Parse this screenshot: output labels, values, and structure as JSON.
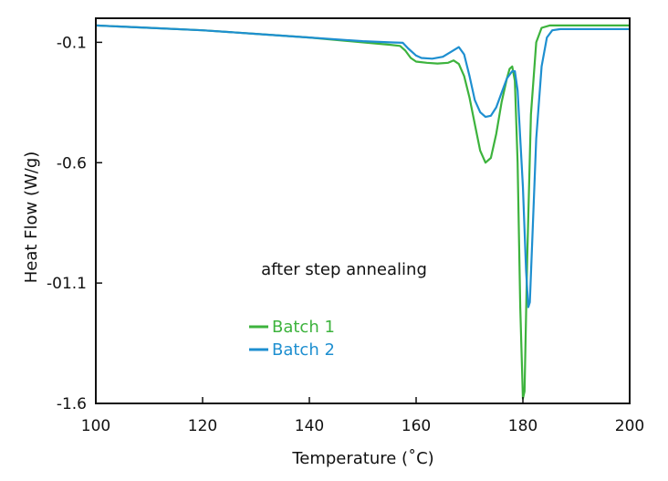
{
  "chart_data": {
    "type": "line",
    "xlabel": "Temperature (˚C)",
    "ylabel": "Heat Flow (W/g)",
    "xlim": [
      100,
      200
    ],
    "ylim": [
      -1.6,
      0.0
    ],
    "x_ticks": [
      100,
      120,
      140,
      160,
      180,
      200
    ],
    "x_tick_labels": [
      "100",
      "120",
      "140",
      "160",
      "180",
      "200"
    ],
    "y_ticks": [
      -0.1,
      -0.6,
      -1.1,
      -1.6
    ],
    "y_tick_labels": [
      "-0.1",
      "-0.6",
      "-01.1",
      "-1.6"
    ],
    "annotation": "after step annealing",
    "legend_position": "lower-left",
    "grid": false,
    "series": [
      {
        "name": "Batch 1",
        "color": "#3db33d",
        "points": [
          [
            100,
            -0.03
          ],
          [
            110,
            -0.04
          ],
          [
            120,
            -0.05
          ],
          [
            130,
            -0.065
          ],
          [
            140,
            -0.08
          ],
          [
            150,
            -0.1
          ],
          [
            155,
            -0.11
          ],
          [
            157,
            -0.115
          ],
          [
            158,
            -0.135
          ],
          [
            159,
            -0.165
          ],
          [
            160,
            -0.18
          ],
          [
            162,
            -0.185
          ],
          [
            164,
            -0.188
          ],
          [
            166,
            -0.185
          ],
          [
            167,
            -0.175
          ],
          [
            168,
            -0.19
          ],
          [
            169,
            -0.24
          ],
          [
            170,
            -0.33
          ],
          [
            171,
            -0.44
          ],
          [
            172,
            -0.55
          ],
          [
            173,
            -0.6
          ],
          [
            174,
            -0.58
          ],
          [
            175,
            -0.48
          ],
          [
            176,
            -0.35
          ],
          [
            177,
            -0.25
          ],
          [
            177.5,
            -0.21
          ],
          [
            178,
            -0.2
          ],
          [
            178.5,
            -0.26
          ],
          [
            179,
            -0.6
          ],
          [
            179.5,
            -1.2
          ],
          [
            180,
            -1.58
          ],
          [
            180.3,
            -1.55
          ],
          [
            180.8,
            -1.0
          ],
          [
            181.5,
            -0.4
          ],
          [
            182.5,
            -0.1
          ],
          [
            183.5,
            -0.04
          ],
          [
            185,
            -0.03
          ],
          [
            190,
            -0.03
          ],
          [
            200,
            -0.03
          ]
        ]
      },
      {
        "name": "Batch 2",
        "color": "#1e8fd0",
        "points": [
          [
            100,
            -0.03
          ],
          [
            110,
            -0.04
          ],
          [
            120,
            -0.05
          ],
          [
            130,
            -0.065
          ],
          [
            140,
            -0.08
          ],
          [
            150,
            -0.095
          ],
          [
            155,
            -0.1
          ],
          [
            157.5,
            -0.102
          ],
          [
            158.5,
            -0.125
          ],
          [
            160,
            -0.155
          ],
          [
            161,
            -0.165
          ],
          [
            163,
            -0.168
          ],
          [
            165,
            -0.16
          ],
          [
            166.5,
            -0.14
          ],
          [
            168,
            -0.12
          ],
          [
            169,
            -0.15
          ],
          [
            170,
            -0.24
          ],
          [
            171,
            -0.34
          ],
          [
            172,
            -0.39
          ],
          [
            173,
            -0.41
          ],
          [
            174,
            -0.405
          ],
          [
            175,
            -0.37
          ],
          [
            176,
            -0.31
          ],
          [
            177,
            -0.25
          ],
          [
            178,
            -0.22
          ],
          [
            178.5,
            -0.22
          ],
          [
            179,
            -0.3
          ],
          [
            180,
            -0.7
          ],
          [
            180.6,
            -1.05
          ],
          [
            181,
            -1.2
          ],
          [
            181.3,
            -1.18
          ],
          [
            181.8,
            -0.9
          ],
          [
            182.5,
            -0.5
          ],
          [
            183.5,
            -0.2
          ],
          [
            184.5,
            -0.08
          ],
          [
            185.5,
            -0.05
          ],
          [
            187,
            -0.045
          ],
          [
            190,
            -0.045
          ],
          [
            200,
            -0.045
          ]
        ]
      }
    ]
  }
}
